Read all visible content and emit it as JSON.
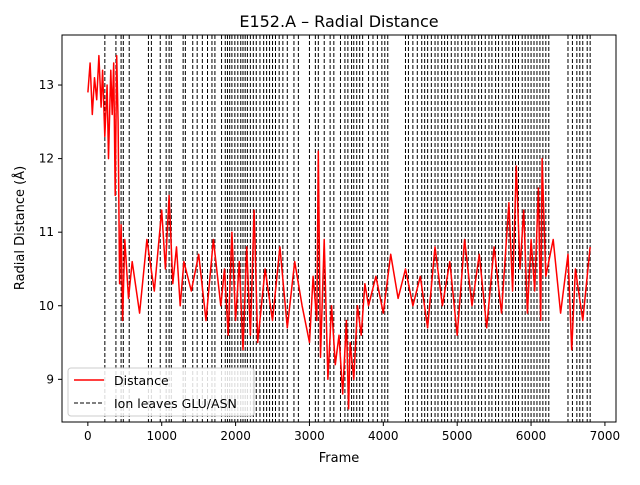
{
  "chart_data": {
    "type": "line",
    "title": "E152.A – Radial Distance",
    "xlabel": "Frame",
    "ylabel": "Radial Distance (Å)",
    "xlim": [
      -350,
      7150
    ],
    "ylim": [
      8.42,
      13.68
    ],
    "xticks": [
      0,
      1000,
      2000,
      3000,
      4000,
      5000,
      6000,
      7000
    ],
    "yticks": [
      9,
      10,
      11,
      12,
      13
    ],
    "xtick_labels": [
      "0",
      "1000",
      "2000",
      "3000",
      "4000",
      "5000",
      "6000",
      "7000"
    ],
    "ytick_labels": [
      "9",
      "10",
      "11",
      "12",
      "13"
    ],
    "grid": false,
    "legend_position": "lower left",
    "series": [
      {
        "name": "Distance",
        "style": "solid",
        "color": "#ff0000",
        "x": [
          0,
          30,
          60,
          90,
          120,
          150,
          180,
          200,
          230,
          260,
          280,
          300,
          310,
          330,
          350,
          370,
          390,
          410,
          430,
          450,
          470,
          500,
          550,
          600,
          700,
          800,
          900,
          1000,
          1050,
          1100,
          1150,
          1200,
          1250,
          1300,
          1400,
          1500,
          1600,
          1700,
          1800,
          1850,
          1900,
          1950,
          2000,
          2050,
          2100,
          2150,
          2200,
          2250,
          2300,
          2400,
          2500,
          2600,
          2700,
          2800,
          2900,
          3000,
          3050,
          3100,
          3120,
          3150,
          3200,
          3250,
          3300,
          3350,
          3400,
          3450,
          3500,
          3530,
          3550,
          3600,
          3650,
          3700,
          3750,
          3800,
          3900,
          4000,
          4100,
          4200,
          4300,
          4400,
          4500,
          4600,
          4700,
          4800,
          4900,
          5000,
          5100,
          5200,
          5300,
          5400,
          5500,
          5600,
          5700,
          5750,
          5800,
          5850,
          5900,
          5950,
          6000,
          6050,
          6100,
          6130,
          6150,
          6200,
          6300,
          6400,
          6500,
          6550,
          6600,
          6700,
          6800
        ],
        "y": [
          12.9,
          13.3,
          12.6,
          13.1,
          12.8,
          13.4,
          12.7,
          13.2,
          12.3,
          13.0,
          12.0,
          12.8,
          13.2,
          12.6,
          13.3,
          11.5,
          13.4,
          12.5,
          10.3,
          11.1,
          9.8,
          10.9,
          10.1,
          10.6,
          9.9,
          10.9,
          10.2,
          11.3,
          10.5,
          11.5,
          10.3,
          10.8,
          10.0,
          10.6,
          10.2,
          10.7,
          9.8,
          10.9,
          10.0,
          10.5,
          9.6,
          11.0,
          9.8,
          10.6,
          9.4,
          10.8,
          9.6,
          11.3,
          9.5,
          10.5,
          9.8,
          10.8,
          9.7,
          10.6,
          10.0,
          9.5,
          10.4,
          9.8,
          12.1,
          9.3,
          10.9,
          9.0,
          10.0,
          9.2,
          9.6,
          8.8,
          9.8,
          8.6,
          9.5,
          9.0,
          10.0,
          9.6,
          10.3,
          10.0,
          10.4,
          9.9,
          10.7,
          10.1,
          10.5,
          10.0,
          10.4,
          9.7,
          10.8,
          10.0,
          10.6,
          9.6,
          10.9,
          10.0,
          10.7,
          9.7,
          10.8,
          9.9,
          11.4,
          10.2,
          11.9,
          10.5,
          11.3,
          9.9,
          10.9,
          10.2,
          11.6,
          9.8,
          12.0,
          10.4,
          10.9,
          9.9,
          10.7,
          9.4,
          10.5,
          9.8,
          10.8
        ]
      },
      {
        "name": "Ion leaves GLU/ASN",
        "style": "dashed",
        "color": "#000000",
        "x": [
          230,
          380,
          450,
          480,
          560,
          820,
          860,
          980,
          1060,
          1100,
          1130,
          1290,
          1320,
          1420,
          1480,
          1550,
          1620,
          1680,
          1720,
          1810,
          1860,
          1890,
          1920,
          1950,
          1990,
          2030,
          2070,
          2100,
          2130,
          2160,
          2200,
          2240,
          2280,
          2330,
          2380,
          2420,
          2460,
          2500,
          2540,
          2590,
          2640,
          2700,
          2790,
          2850,
          3000,
          3080,
          3120,
          3200,
          3280,
          3330,
          3420,
          3480,
          3520,
          3570,
          3600,
          3640,
          3680,
          3720,
          3800,
          3860,
          3920,
          3980,
          4020,
          4060,
          4300,
          4340,
          4400,
          4460,
          4520,
          4560,
          4600,
          4650,
          4700,
          4740,
          4790,
          4830,
          4870,
          4920,
          4970,
          5010,
          5060,
          5110,
          5150,
          5200,
          5240,
          5290,
          5330,
          5380,
          5430,
          5470,
          5520,
          5560,
          5610,
          5660,
          5700,
          5750,
          5790,
          5830,
          5880,
          5920,
          5960,
          6000,
          6040,
          6080,
          6120,
          6160,
          6200,
          6240,
          6500,
          6560,
          6620,
          6660,
          6700,
          6760,
          6800
        ]
      }
    ]
  }
}
